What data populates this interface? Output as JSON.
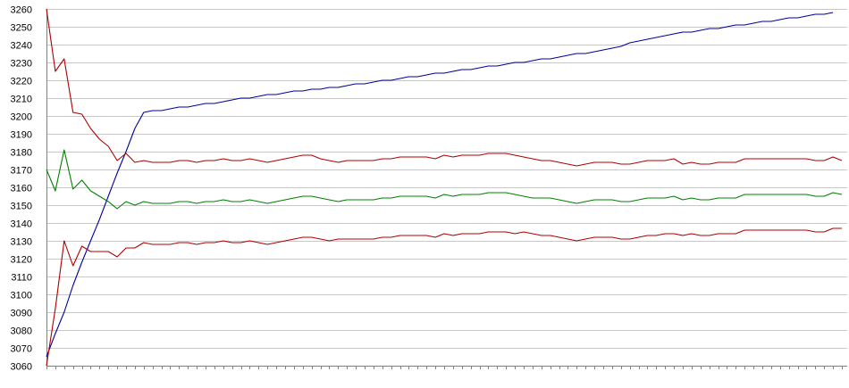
{
  "chart_data": {
    "type": "line",
    "title": "",
    "xlabel": "",
    "ylabel": "",
    "ylim": [
      3060,
      3260
    ],
    "xlim": [
      0,
      90
    ],
    "yticks": [
      3060,
      3070,
      3080,
      3090,
      3100,
      3110,
      3120,
      3130,
      3140,
      3150,
      3160,
      3170,
      3180,
      3190,
      3200,
      3210,
      3220,
      3230,
      3240,
      3250,
      3260
    ],
    "grid": true,
    "legend": "none",
    "series": [
      {
        "color": "#0000a0",
        "x": [
          0,
          1,
          2,
          3,
          4,
          5,
          6,
          7,
          8,
          9,
          10,
          11,
          12,
          13,
          14,
          15,
          16,
          17,
          18,
          19,
          20,
          21,
          22,
          23,
          24,
          25,
          26,
          27,
          28,
          29,
          30,
          31,
          32,
          33,
          34,
          35,
          36,
          37,
          38,
          39,
          40,
          41,
          42,
          43,
          44,
          45,
          46,
          47,
          48,
          49,
          50,
          51,
          52,
          53,
          54,
          55,
          56,
          57,
          58,
          59,
          60,
          61,
          62,
          63,
          64,
          65,
          66,
          67,
          68,
          69,
          70,
          71,
          72,
          73,
          74,
          75,
          76,
          77,
          78,
          79,
          80,
          81,
          82,
          83,
          84,
          85,
          86,
          87,
          88,
          89
        ],
        "y": [
          3065,
          3078,
          3090,
          3105,
          3118,
          3130,
          3142,
          3155,
          3168,
          3180,
          3193,
          3202,
          3203,
          3203,
          3204,
          3205,
          3205,
          3206,
          3207,
          3207,
          3208,
          3209,
          3210,
          3210,
          3211,
          3212,
          3212,
          3213,
          3214,
          3214,
          3215,
          3215,
          3216,
          3216,
          3217,
          3218,
          3218,
          3219,
          3220,
          3220,
          3221,
          3222,
          3222,
          3223,
          3224,
          3224,
          3225,
          3226,
          3226,
          3227,
          3228,
          3228,
          3229,
          3230,
          3230,
          3231,
          3232,
          3232,
          3233,
          3234,
          3235,
          3235,
          3236,
          3237,
          3238,
          3239,
          3241,
          3242,
          3243,
          3244,
          3245,
          3246,
          3247,
          3247,
          3248,
          3249,
          3249,
          3250,
          3251,
          3251,
          3252,
          3253,
          3253,
          3254,
          3255,
          3255,
          3256,
          3257,
          3257,
          3258
        ]
      },
      {
        "color": "#b00000",
        "x": [
          0,
          1,
          2,
          3,
          4,
          5,
          6,
          7,
          8,
          9,
          10,
          11,
          12,
          13,
          14,
          15,
          16,
          17,
          18,
          19,
          20,
          21,
          22,
          23,
          24,
          25,
          26,
          27,
          28,
          29,
          30,
          31,
          32,
          33,
          34,
          35,
          36,
          37,
          38,
          39,
          40,
          41,
          42,
          43,
          44,
          45,
          46,
          47,
          48,
          49,
          50,
          51,
          52,
          53,
          54,
          55,
          56,
          57,
          58,
          59,
          60,
          61,
          62,
          63,
          64,
          65,
          66,
          67,
          68,
          69,
          70,
          71,
          72,
          73,
          74,
          75,
          76,
          77,
          78,
          79,
          80,
          81,
          82,
          83,
          84,
          85,
          86,
          87,
          88,
          89,
          90
        ],
        "y": [
          3260,
          3225,
          3232,
          3202,
          3201,
          3193,
          3187,
          3183,
          3175,
          3179,
          3174,
          3175,
          3174,
          3174,
          3174,
          3175,
          3175,
          3174,
          3175,
          3175,
          3176,
          3175,
          3175,
          3176,
          3175,
          3174,
          3175,
          3176,
          3177,
          3178,
          3178,
          3176,
          3175,
          3174,
          3175,
          3175,
          3175,
          3175,
          3176,
          3176,
          3177,
          3177,
          3177,
          3177,
          3176,
          3178,
          3177,
          3178,
          3178,
          3178,
          3179,
          3179,
          3179,
          3178,
          3177,
          3176,
          3175,
          3175,
          3174,
          3173,
          3172,
          3173,
          3174,
          3174,
          3174,
          3173,
          3173,
          3174,
          3175,
          3175,
          3175,
          3176,
          3173,
          3174,
          3173,
          3173,
          3174,
          3174,
          3174,
          3176,
          3176,
          3176,
          3176,
          3176,
          3176,
          3176,
          3176,
          3175,
          3175,
          3177,
          3175
        ]
      },
      {
        "color": "#008000",
        "x": [
          0,
          1,
          2,
          3,
          4,
          5,
          6,
          7,
          8,
          9,
          10,
          11,
          12,
          13,
          14,
          15,
          16,
          17,
          18,
          19,
          20,
          21,
          22,
          23,
          24,
          25,
          26,
          27,
          28,
          29,
          30,
          31,
          32,
          33,
          34,
          35,
          36,
          37,
          38,
          39,
          40,
          41,
          42,
          43,
          44,
          45,
          46,
          47,
          48,
          49,
          50,
          51,
          52,
          53,
          54,
          55,
          56,
          57,
          58,
          59,
          60,
          61,
          62,
          63,
          64,
          65,
          66,
          67,
          68,
          69,
          70,
          71,
          72,
          73,
          74,
          75,
          76,
          77,
          78,
          79,
          80,
          81,
          82,
          83,
          84,
          85,
          86,
          87,
          88,
          89,
          90
        ],
        "y": [
          3170,
          3158,
          3181,
          3159,
          3164,
          3158,
          3155,
          3152,
          3148,
          3152,
          3150,
          3152,
          3151,
          3151,
          3151,
          3152,
          3152,
          3151,
          3152,
          3152,
          3153,
          3152,
          3152,
          3153,
          3152,
          3151,
          3152,
          3153,
          3154,
          3155,
          3155,
          3154,
          3153,
          3152,
          3153,
          3153,
          3153,
          3153,
          3154,
          3154,
          3155,
          3155,
          3155,
          3155,
          3154,
          3156,
          3155,
          3156,
          3156,
          3156,
          3157,
          3157,
          3157,
          3156,
          3155,
          3154,
          3154,
          3154,
          3153,
          3152,
          3151,
          3152,
          3153,
          3153,
          3153,
          3152,
          3152,
          3153,
          3154,
          3154,
          3154,
          3155,
          3153,
          3154,
          3153,
          3153,
          3154,
          3154,
          3154,
          3156,
          3156,
          3156,
          3156,
          3156,
          3156,
          3156,
          3156,
          3155,
          3155,
          3157,
          3156
        ]
      },
      {
        "color": "#b00000",
        "x": [
          0,
          1,
          2,
          3,
          4,
          5,
          6,
          7,
          8,
          9,
          10,
          11,
          12,
          13,
          14,
          15,
          16,
          17,
          18,
          19,
          20,
          21,
          22,
          23,
          24,
          25,
          26,
          27,
          28,
          29,
          30,
          31,
          32,
          33,
          34,
          35,
          36,
          37,
          38,
          39,
          40,
          41,
          42,
          43,
          44,
          45,
          46,
          47,
          48,
          49,
          50,
          51,
          52,
          53,
          54,
          55,
          56,
          57,
          58,
          59,
          60,
          61,
          62,
          63,
          64,
          65,
          66,
          67,
          68,
          69,
          70,
          71,
          72,
          73,
          74,
          75,
          76,
          77,
          78,
          79,
          80,
          81,
          82,
          83,
          84,
          85,
          86,
          87,
          88,
          89,
          90
        ],
        "y": [
          3060,
          3092,
          3130,
          3116,
          3127,
          3124,
          3124,
          3124,
          3121,
          3126,
          3126,
          3129,
          3128,
          3128,
          3128,
          3129,
          3129,
          3128,
          3129,
          3129,
          3130,
          3129,
          3129,
          3130,
          3129,
          3128,
          3129,
          3130,
          3131,
          3132,
          3132,
          3131,
          3130,
          3131,
          3131,
          3131,
          3131,
          3131,
          3132,
          3132,
          3133,
          3133,
          3133,
          3133,
          3132,
          3134,
          3133,
          3134,
          3134,
          3134,
          3135,
          3135,
          3135,
          3134,
          3135,
          3134,
          3133,
          3133,
          3132,
          3131,
          3130,
          3131,
          3132,
          3132,
          3132,
          3131,
          3131,
          3132,
          3133,
          3133,
          3134,
          3134,
          3133,
          3134,
          3133,
          3133,
          3134,
          3134,
          3134,
          3136,
          3136,
          3136,
          3136,
          3136,
          3136,
          3136,
          3136,
          3135,
          3135,
          3137,
          3137
        ]
      }
    ]
  }
}
